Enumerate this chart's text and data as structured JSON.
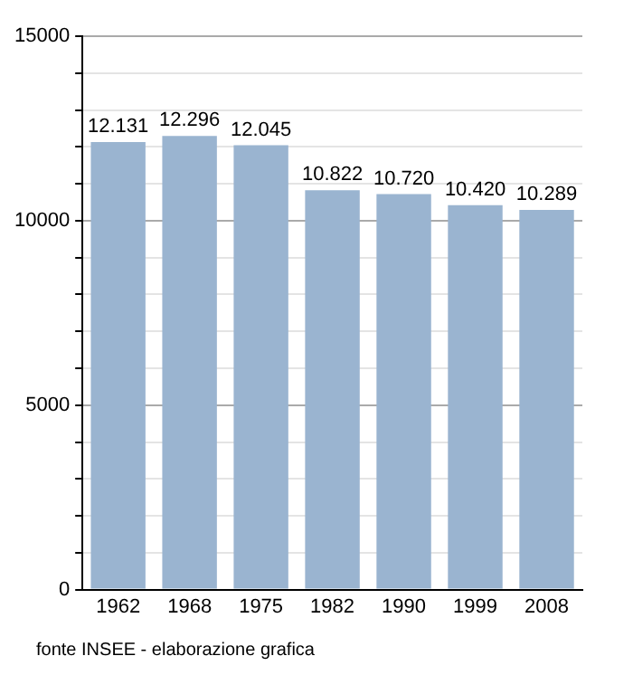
{
  "chart_data": {
    "type": "bar",
    "categories": [
      "1962",
      "1968",
      "1975",
      "1982",
      "1990",
      "1999",
      "2008"
    ],
    "values": [
      12131,
      12296,
      12045,
      10822,
      10720,
      10420,
      10289
    ],
    "value_labels": [
      "12.131",
      "12.296",
      "12.045",
      "10.822",
      "10.720",
      "10.420",
      "10.289"
    ],
    "color": "#9ab4d0",
    "ylim": [
      0,
      15000
    ],
    "yticks": [
      0,
      {
        "value": 1000,
        "label": null
      },
      {
        "value": 2000,
        "label": null
      },
      {
        "value": 3000,
        "label": null
      },
      {
        "value": 4000,
        "label": null
      },
      5000,
      {
        "value": 6000,
        "label": null
      },
      {
        "value": 7000,
        "label": null
      },
      {
        "value": 8000,
        "label": null
      },
      {
        "value": 9000,
        "label": null
      },
      10000,
      {
        "value": 11000,
        "label": null
      },
      {
        "value": 12000,
        "label": null
      },
      {
        "value": 13000,
        "label": null
      },
      {
        "value": 14000,
        "label": null
      },
      15000
    ],
    "grid": "y",
    "annotations": [
      "fonte INSEE - elaborazione grafica"
    ]
  }
}
